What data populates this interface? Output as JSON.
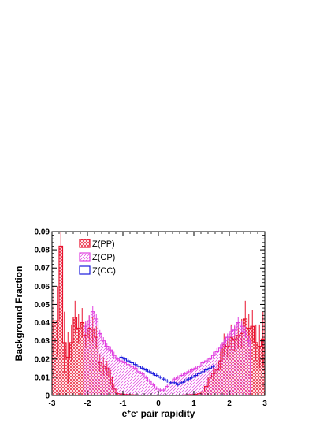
{
  "chart_data": {
    "type": "bar",
    "xlabel_base": "e",
    "xlabel_sup1": "+",
    "xlabel_mid": "e",
    "xlabel_sup2": "-",
    "xlabel_rest": " pair rapidity",
    "ylabel": "Background Fraction",
    "xlim": [
      -3,
      3
    ],
    "ylim": [
      0,
      0.09
    ],
    "bin_width": 0.1,
    "x_ticks": [
      -3,
      -2,
      -1,
      0,
      1,
      2,
      3
    ],
    "x_tick_labels": [
      "-3",
      "-2",
      "-1",
      "0",
      "1",
      "2",
      "3"
    ],
    "y_ticks": [
      0,
      0.01,
      0.02,
      0.03,
      0.04,
      0.05,
      0.06,
      0.07,
      0.08,
      0.09
    ],
    "y_tick_labels": [
      "0",
      "0.01",
      "0.02",
      "0.03",
      "0.04",
      "0.05",
      "0.06",
      "0.07",
      "0.08",
      "0.09"
    ],
    "legend_position": "top-left",
    "series": [
      {
        "name": "Z(PP)",
        "color": "#e8112d",
        "fill": "crosshatch",
        "x_start": -2.95,
        "values": [
          0.041,
          0.041,
          0.082,
          0.029,
          0.021,
          0.029,
          0.043,
          0.037,
          0.04,
          0.033,
          0.037,
          0.036,
          0.032,
          0.018,
          0.016,
          0.015,
          0.01,
          0.004,
          0.001,
          0.0008,
          0.0006,
          0.0005,
          0.0004,
          0.0003,
          0.0002,
          0.0002,
          0.0001,
          0.0001,
          0.0001,
          0.0,
          0.0,
          0.0,
          0.0001,
          0.0001,
          0.0001,
          0.0002,
          0.0002,
          0.0003,
          0.0004,
          0.0005,
          0.0006,
          0.001,
          0.002,
          0.005,
          0.01,
          0.012,
          0.014,
          0.019,
          0.028,
          0.027,
          0.032,
          0.031,
          0.033,
          0.034,
          0.042,
          0.037,
          0.038,
          0.029,
          0.027,
          0.031,
          0.041,
          0.026,
          0.056
        ],
        "errors": [
          0.019,
          0.019,
          0.008,
          0.017,
          0.014,
          0.01,
          0.009,
          0.008,
          0.008,
          0.007,
          0.007,
          0.007,
          0.006,
          0.005,
          0.005,
          0.004,
          0.004,
          0.002,
          0.001,
          0.0005,
          0.0004,
          0.0003,
          0.0003,
          0.0002,
          0.0002,
          0.0002,
          0.0001,
          0.0001,
          0.0001,
          0.0001,
          0.0001,
          0.0001,
          0.0001,
          0.0001,
          0.0001,
          0.0002,
          0.0002,
          0.0002,
          0.0003,
          0.0003,
          0.0004,
          0.0006,
          0.001,
          0.002,
          0.003,
          0.004,
          0.004,
          0.005,
          0.006,
          0.006,
          0.007,
          0.007,
          0.007,
          0.008,
          0.01,
          0.008,
          0.009,
          0.01,
          0.012,
          0.015,
          0.018,
          0.028,
          0.034
        ]
      },
      {
        "name": "Z(CP)",
        "color": "#e040e0",
        "fill": "hatch",
        "x_start": -2.95,
        "values": [
          0.0,
          0.0,
          0.0,
          0.0,
          0.0,
          0.0,
          0.0,
          0.0,
          0.0,
          0.038,
          0.041,
          0.046,
          0.042,
          0.034,
          0.03,
          0.027,
          0.025,
          0.022,
          0.02,
          0.019,
          0.018,
          0.017,
          0.016,
          0.015,
          0.013,
          0.012,
          0.01,
          0.008,
          0.006,
          0.004,
          0.003,
          0.003,
          0.005,
          0.007,
          0.009,
          0.01,
          0.011,
          0.012,
          0.013,
          0.014,
          0.015,
          0.016,
          0.018,
          0.019,
          0.02,
          0.022,
          0.024,
          0.026,
          0.029,
          0.032,
          0.035,
          0.036,
          0.04,
          0.038,
          0.035,
          0.03,
          0.0,
          0.0,
          0.0,
          0.0,
          0.0,
          0.0,
          0.0
        ],
        "errors": [
          0.0,
          0.0,
          0.0,
          0.0,
          0.0,
          0.0,
          0.0,
          0.0,
          0.0,
          0.003,
          0.003,
          0.003,
          0.003,
          0.002,
          0.002,
          0.002,
          0.002,
          0.002,
          0.001,
          0.001,
          0.001,
          0.001,
          0.001,
          0.001,
          0.001,
          0.001,
          0.001,
          0.001,
          0.001,
          0.001,
          0.001,
          0.001,
          0.001,
          0.001,
          0.001,
          0.001,
          0.001,
          0.001,
          0.001,
          0.001,
          0.001,
          0.001,
          0.001,
          0.001,
          0.001,
          0.002,
          0.002,
          0.002,
          0.002,
          0.002,
          0.003,
          0.003,
          0.003,
          0.003,
          0.003,
          0.003,
          0.0,
          0.0,
          0.0,
          0.0,
          0.0,
          0.0,
          0.0
        ]
      },
      {
        "name": "Z(CC)",
        "color": "#1a1adc",
        "fill": "none",
        "x_start": -1.05,
        "values": [
          0.021,
          0.02,
          0.019,
          0.018,
          0.017,
          0.016,
          0.015,
          0.014,
          0.013,
          0.012,
          0.011,
          0.01,
          0.009,
          0.008,
          0.007,
          0.007,
          0.006,
          0.007,
          0.008,
          0.009,
          0.01,
          0.011,
          0.012,
          0.013,
          0.014,
          0.015,
          0.016
        ],
        "errors": [
          0.001,
          0.001,
          0.001,
          0.001,
          0.001,
          0.001,
          0.001,
          0.001,
          0.001,
          0.001,
          0.001,
          0.001,
          0.001,
          0.001,
          0.001,
          0.001,
          0.001,
          0.001,
          0.001,
          0.001,
          0.001,
          0.001,
          0.001,
          0.001,
          0.001,
          0.001,
          0.001
        ]
      }
    ]
  }
}
